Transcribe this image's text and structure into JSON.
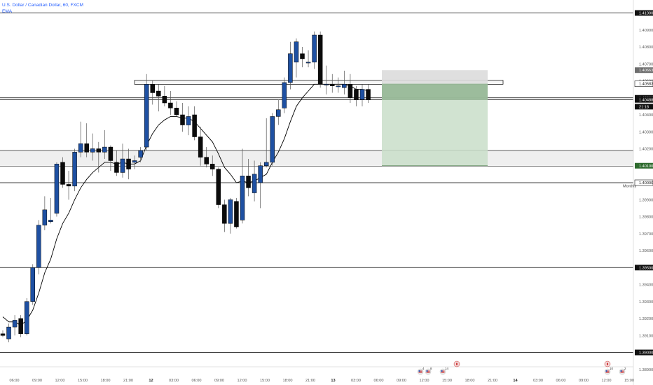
{
  "header": {
    "symbol_title": "U.S. Dollar / Canadian Dollar, 60, FXCM",
    "indicator": "EMA"
  },
  "colors": {
    "bull": "#1e50a2",
    "bear": "#0b0b0b",
    "ema": "#000000",
    "zone_fill": "#efefef",
    "target_fill": "#c9dec9",
    "target_dark": "#5c8a5c",
    "stop_fill": "#dcdcdc",
    "line": "#000000"
  },
  "annotations": {
    "monthly_label": "Monthly"
  },
  "chart_data": {
    "type": "candlestick",
    "symbol": "U.S. Dollar / Canadian Dollar",
    "interval": "60",
    "source": "FXCM",
    "ylim": [
      1.3893,
      1.4123
    ],
    "price_labels": [
      "1.41000",
      "1.40900",
      "1.40800",
      "1.40700",
      "1.40600",
      "1.40500",
      "1.40400",
      "1.40300",
      "1.40200",
      "1.40100",
      "1.40000",
      "1.39900",
      "1.39800",
      "1.39700",
      "1.39600",
      "1.39500",
      "1.39400",
      "1.39300",
      "1.39200",
      "1.39100",
      "1.39000",
      "1.38900"
    ],
    "time_labels": [
      "06:00",
      "09:00",
      "12:00",
      "15:00",
      "18:00",
      "21:00",
      "12",
      "03:00",
      "06:00",
      "09:00",
      "12:00",
      "15:00",
      "18:00",
      "21:00",
      "13",
      "03:00",
      "06:00",
      "09:00",
      "12:00",
      "15:00",
      "18:00",
      "21:00",
      "14",
      "03:00",
      "06:00",
      "09:00",
      "12:00",
      "15:00"
    ],
    "horizontal_levels": [
      1.41,
      1.405,
      1.4,
      1.395,
      1.39
    ],
    "highlighted_labels": [
      {
        "text": "1.41000",
        "style": "dark"
      },
      {
        "text": "1.40663",
        "style": "gray"
      },
      {
        "text": "1.40583",
        "style": "white"
      },
      {
        "text": "1.40500",
        "style": "dark"
      },
      {
        "text": "1.40488",
        "style": "dark"
      },
      {
        "text": "21:18",
        "style": "dark"
      },
      {
        "text": "1.40100",
        "style": "green"
      },
      {
        "text": "1.40000",
        "style": "white"
      },
      {
        "text": "1.39500",
        "style": "dark"
      },
      {
        "text": "1.39000",
        "style": "dark"
      }
    ],
    "zones": [
      {
        "name": "resistance-zone",
        "from": 1.4058,
        "to": 1.40603
      },
      {
        "name": "support-zone",
        "from": 1.401,
        "to": 1.4019
      }
    ],
    "position": {
      "entry": 1.40583,
      "stop": 1.40663,
      "target": 1.401
    },
    "candles": [
      {
        "o": 1.3911,
        "h": 1.3913,
        "l": 1.3909,
        "c": 1.391
      },
      {
        "o": 1.3908,
        "h": 1.3917,
        "l": 1.3906,
        "c": 1.3915
      },
      {
        "o": 1.3915,
        "h": 1.3922,
        "l": 1.391,
        "c": 1.3919
      },
      {
        "o": 1.392,
        "h": 1.3922,
        "l": 1.3909,
        "c": 1.3911
      },
      {
        "o": 1.3911,
        "h": 1.3932,
        "l": 1.391,
        "c": 1.393
      },
      {
        "o": 1.393,
        "h": 1.3952,
        "l": 1.3928,
        "c": 1.395
      },
      {
        "o": 1.395,
        "h": 1.3978,
        "l": 1.3946,
        "c": 1.3975
      },
      {
        "o": 1.3975,
        "h": 1.3992,
        "l": 1.3972,
        "c": 1.3984
      },
      {
        "o": 1.3977,
        "h": 1.3991,
        "l": 1.3976,
        "c": 1.3978
      },
      {
        "o": 1.3982,
        "h": 1.4012,
        "l": 1.398,
        "c": 1.4011
      },
      {
        "o": 1.4012,
        "h": 1.4015,
        "l": 1.3997,
        "c": 1.3999
      },
      {
        "o": 1.3999,
        "h": 1.4007,
        "l": 1.399,
        "c": 1.3998
      },
      {
        "o": 1.3998,
        "h": 1.402,
        "l": 1.3995,
        "c": 1.4018
      },
      {
        "o": 1.4018,
        "h": 1.4036,
        "l": 1.4015,
        "c": 1.4023
      },
      {
        "o": 1.4023,
        "h": 1.4035,
        "l": 1.4015,
        "c": 1.4018
      },
      {
        "o": 1.4018,
        "h": 1.4029,
        "l": 1.4013,
        "c": 1.402
      },
      {
        "o": 1.402,
        "h": 1.4024,
        "l": 1.4006,
        "c": 1.4018
      },
      {
        "o": 1.4018,
        "h": 1.4031,
        "l": 1.4014,
        "c": 1.4021
      },
      {
        "o": 1.4021,
        "h": 1.4022,
        "l": 1.4007,
        "c": 1.4013
      },
      {
        "o": 1.4012,
        "h": 1.4019,
        "l": 1.4004,
        "c": 1.4006
      },
      {
        "o": 1.4006,
        "h": 1.4023,
        "l": 1.4003,
        "c": 1.4014
      },
      {
        "o": 1.4014,
        "h": 1.402,
        "l": 1.4002,
        "c": 1.4008
      },
      {
        "o": 1.4012,
        "h": 1.4016,
        "l": 1.4008,
        "c": 1.4013
      },
      {
        "o": 1.4015,
        "h": 1.4021,
        "l": 1.4012,
        "c": 1.4019
      },
      {
        "o": 1.4021,
        "h": 1.4064,
        "l": 1.4019,
        "c": 1.4058
      },
      {
        "o": 1.4058,
        "h": 1.406,
        "l": 1.4046,
        "c": 1.4053
      },
      {
        "o": 1.4054,
        "h": 1.4058,
        "l": 1.4042,
        "c": 1.4051
      },
      {
        "o": 1.4051,
        "h": 1.4057,
        "l": 1.4045,
        "c": 1.4047
      },
      {
        "o": 1.4047,
        "h": 1.4054,
        "l": 1.404,
        "c": 1.4044
      },
      {
        "o": 1.4044,
        "h": 1.4048,
        "l": 1.4039,
        "c": 1.404
      },
      {
        "o": 1.404,
        "h": 1.4047,
        "l": 1.403,
        "c": 1.4034
      },
      {
        "o": 1.4034,
        "h": 1.4045,
        "l": 1.4028,
        "c": 1.4039
      },
      {
        "o": 1.404,
        "h": 1.4045,
        "l": 1.4025,
        "c": 1.4027
      },
      {
        "o": 1.4027,
        "h": 1.4033,
        "l": 1.401,
        "c": 1.4015
      },
      {
        "o": 1.4015,
        "h": 1.4021,
        "l": 1.4009,
        "c": 1.4011
      },
      {
        "o": 1.4011,
        "h": 1.4016,
        "l": 1.4004,
        "c": 1.4008
      },
      {
        "o": 1.4008,
        "h": 1.4009,
        "l": 1.3985,
        "c": 1.3987
      },
      {
        "o": 1.3987,
        "h": 1.399,
        "l": 1.3971,
        "c": 1.3976
      },
      {
        "o": 1.3976,
        "h": 1.3991,
        "l": 1.397,
        "c": 1.399
      },
      {
        "o": 1.3989,
        "h": 1.3991,
        "l": 1.3973,
        "c": 1.3974
      },
      {
        "o": 1.3978,
        "h": 1.402,
        "l": 1.3976,
        "c": 1.4004
      },
      {
        "o": 1.4004,
        "h": 1.4014,
        "l": 1.3992,
        "c": 1.3997
      },
      {
        "o": 1.3994,
        "h": 1.4013,
        "l": 1.3989,
        "c": 1.4005
      },
      {
        "o": 1.4,
        "h": 1.4012,
        "l": 1.3985,
        "c": 1.401
      },
      {
        "o": 1.401,
        "h": 1.4038,
        "l": 1.4009,
        "c": 1.4012
      },
      {
        "o": 1.4012,
        "h": 1.4041,
        "l": 1.401,
        "c": 1.4039
      },
      {
        "o": 1.4039,
        "h": 1.4049,
        "l": 1.4034,
        "c": 1.4043
      },
      {
        "o": 1.4044,
        "h": 1.4062,
        "l": 1.4041,
        "c": 1.4059
      },
      {
        "o": 1.4059,
        "h": 1.4083,
        "l": 1.4055,
        "c": 1.4076
      },
      {
        "o": 1.4071,
        "h": 1.4085,
        "l": 1.4062,
        "c": 1.4083
      },
      {
        "o": 1.4076,
        "h": 1.408,
        "l": 1.4068,
        "c": 1.4073
      },
      {
        "o": 1.4071,
        "h": 1.4078,
        "l": 1.4068,
        "c": 1.4071
      },
      {
        "o": 1.4071,
        "h": 1.4089,
        "l": 1.4067,
        "c": 1.4087
      },
      {
        "o": 1.4087,
        "h": 1.4089,
        "l": 1.4056,
        "c": 1.4058
      },
      {
        "o": 1.4058,
        "h": 1.4069,
        "l": 1.4052,
        "c": 1.4058
      },
      {
        "o": 1.4058,
        "h": 1.4064,
        "l": 1.4053,
        "c": 1.4057
      },
      {
        "o": 1.4057,
        "h": 1.4062,
        "l": 1.4053,
        "c": 1.4057
      },
      {
        "o": 1.4056,
        "h": 1.4066,
        "l": 1.4052,
        "c": 1.4058
      },
      {
        "o": 1.4058,
        "h": 1.4064,
        "l": 1.4047,
        "c": 1.405
      },
      {
        "o": 1.4055,
        "h": 1.4057,
        "l": 1.4045,
        "c": 1.4049
      },
      {
        "o": 1.4049,
        "h": 1.4058,
        "l": 1.4045,
        "c": 1.4055
      },
      {
        "o": 1.4055,
        "h": 1.4058,
        "l": 1.4047,
        "c": 1.4049
      }
    ],
    "ema": [
      1.3921,
      1.3918,
      1.3918,
      1.3916,
      1.3919,
      1.3925,
      1.3935,
      1.3947,
      1.3955,
      1.3967,
      1.3976,
      1.3982,
      1.399,
      1.3997,
      1.4002,
      1.4006,
      1.4009,
      1.4012,
      1.4012,
      1.4011,
      1.4012,
      1.4011,
      1.4011,
      1.4013,
      1.4022,
      1.4029,
      1.4034,
      1.4037,
      1.4039,
      1.4039,
      1.4038,
      1.4038,
      1.4036,
      1.4032,
      1.4028,
      1.4024,
      1.4017,
      1.4009,
      1.4005,
      1.4,
      1.4001,
      1.4,
      1.4001,
      1.4003,
      1.4005,
      1.4012,
      1.4018,
      1.4026,
      1.4036,
      1.4045,
      1.405,
      1.4054,
      1.4058,
      1.4058,
      1.4058,
      1.4058,
      1.4058,
      1.4058,
      1.4057,
      1.4055,
      1.4055,
      1.4054
    ],
    "events": [
      {
        "label": "4",
        "time": "12:00"
      },
      {
        "label": "8",
        "time": "12:00"
      },
      {
        "label": "14",
        "time": "15:00"
      },
      {
        "label": "10",
        "time": "12:00"
      },
      {
        "label": "2",
        "time": "15:00"
      }
    ]
  }
}
